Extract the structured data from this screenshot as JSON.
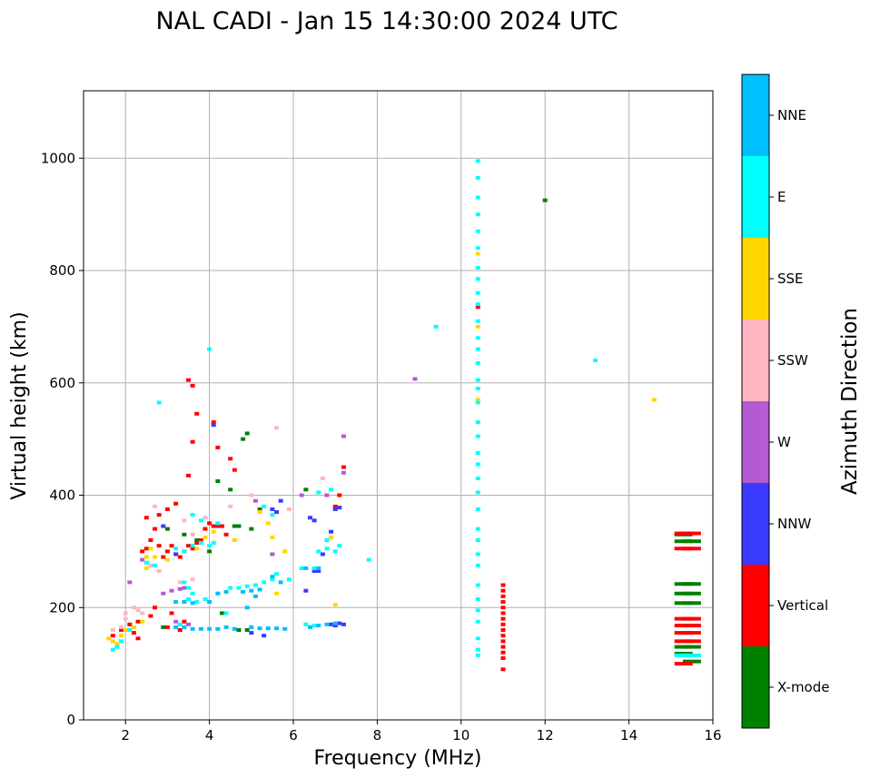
{
  "chart_data": {
    "type": "scatter",
    "title": "NAL CADI - Jan 15 14:30:00 2024 UTC",
    "xlabel": "Frequency (MHz)",
    "ylabel": "Virtual height (km)",
    "xlim": [
      1,
      16
    ],
    "ylim": [
      0,
      1120
    ],
    "xticks": [
      2,
      4,
      6,
      8,
      10,
      12,
      14,
      16
    ],
    "yticks": [
      0,
      200,
      400,
      600,
      800,
      1000
    ],
    "grid": true,
    "colorbar": {
      "label": "Azimuth Direction",
      "categories": [
        {
          "name": "X-mode",
          "color": "#008000"
        },
        {
          "name": "Vertical",
          "color": "#ff0000"
        },
        {
          "name": "NNW",
          "color": "#3a3aff"
        },
        {
          "name": "W",
          "color": "#b45ad2"
        },
        {
          "name": "SSW",
          "color": "#ffb6c1"
        },
        {
          "name": "SSE",
          "color": "#ffd700"
        },
        {
          "name": "E",
          "color": "#00ffff"
        },
        {
          "name": "NNE",
          "color": "#00bfff"
        }
      ]
    },
    "series": [
      {
        "name": "X-mode",
        "points": [
          [
            4.2,
            425
          ],
          [
            4.6,
            345
          ],
          [
            4.7,
            345
          ],
          [
            4.8,
            500
          ],
          [
            4.9,
            510
          ],
          [
            4.5,
            410
          ],
          [
            5.0,
            340
          ],
          [
            5.2,
            375
          ],
          [
            4.7,
            160
          ],
          [
            4.9,
            160
          ],
          [
            15.3,
            330
          ],
          [
            15.3,
            318
          ],
          [
            15.5,
            318
          ],
          [
            15.3,
            242
          ],
          [
            15.5,
            242
          ],
          [
            15.3,
            225
          ],
          [
            15.5,
            225
          ],
          [
            15.3,
            208
          ],
          [
            15.5,
            208
          ],
          [
            15.3,
            130
          ],
          [
            15.5,
            130
          ],
          [
            15.3,
            118
          ],
          [
            15.5,
            104
          ],
          [
            12.0,
            925
          ],
          [
            3.4,
            330
          ],
          [
            3.7,
            320
          ],
          [
            4.0,
            300
          ],
          [
            4.3,
            190
          ],
          [
            6.3,
            410
          ],
          [
            2.9,
            165
          ],
          [
            3.0,
            340
          ]
        ]
      },
      {
        "name": "Vertical",
        "points": [
          [
            1.7,
            150
          ],
          [
            1.9,
            160
          ],
          [
            2.1,
            170
          ],
          [
            2.2,
            155
          ],
          [
            2.3,
            145
          ],
          [
            2.3,
            175
          ],
          [
            2.4,
            300
          ],
          [
            2.5,
            305
          ],
          [
            2.6,
            320
          ],
          [
            2.7,
            340
          ],
          [
            2.8,
            310
          ],
          [
            2.9,
            290
          ],
          [
            3.0,
            300
          ],
          [
            3.1,
            310
          ],
          [
            3.2,
            295
          ],
          [
            3.3,
            290
          ],
          [
            3.4,
            300
          ],
          [
            3.5,
            310
          ],
          [
            3.6,
            305
          ],
          [
            3.7,
            315
          ],
          [
            3.8,
            320
          ],
          [
            3.9,
            340
          ],
          [
            4.0,
            350
          ],
          [
            4.1,
            345
          ],
          [
            4.2,
            345
          ],
          [
            4.3,
            345
          ],
          [
            4.4,
            330
          ],
          [
            3.5,
            435
          ],
          [
            3.6,
            495
          ],
          [
            3.7,
            545
          ],
          [
            3.6,
            595
          ],
          [
            3.5,
            605
          ],
          [
            4.1,
            530
          ],
          [
            4.2,
            485
          ],
          [
            4.5,
            465
          ],
          [
            4.6,
            445
          ],
          [
            2.5,
            360
          ],
          [
            2.8,
            365
          ],
          [
            3.0,
            375
          ],
          [
            3.2,
            385
          ],
          [
            3.0,
            165
          ],
          [
            3.1,
            190
          ],
          [
            3.3,
            160
          ],
          [
            3.4,
            175
          ],
          [
            2.6,
            185
          ],
          [
            2.7,
            200
          ],
          [
            11.0,
            240
          ],
          [
            11.0,
            230
          ],
          [
            11.0,
            220
          ],
          [
            11.0,
            210
          ],
          [
            11.0,
            200
          ],
          [
            11.0,
            190
          ],
          [
            11.0,
            180
          ],
          [
            11.0,
            170
          ],
          [
            11.0,
            160
          ],
          [
            11.0,
            150
          ],
          [
            11.0,
            140
          ],
          [
            11.0,
            130
          ],
          [
            11.0,
            120
          ],
          [
            11.0,
            110
          ],
          [
            11.0,
            90
          ],
          [
            10.4,
            735
          ],
          [
            15.3,
            332
          ],
          [
            15.5,
            332
          ],
          [
            15.3,
            305
          ],
          [
            15.5,
            305
          ],
          [
            15.3,
            180
          ],
          [
            15.5,
            180
          ],
          [
            15.3,
            168
          ],
          [
            15.5,
            168
          ],
          [
            15.3,
            155
          ],
          [
            15.5,
            155
          ],
          [
            15.3,
            140
          ],
          [
            15.5,
            140
          ],
          [
            15.3,
            100
          ],
          [
            7.2,
            450
          ],
          [
            7.0,
            380
          ],
          [
            7.1,
            400
          ]
        ]
      },
      {
        "name": "NNW",
        "points": [
          [
            5.5,
            375
          ],
          [
            5.6,
            370
          ],
          [
            5.7,
            390
          ],
          [
            6.4,
            360
          ],
          [
            6.5,
            355
          ],
          [
            6.7,
            295
          ],
          [
            6.9,
            335
          ],
          [
            7.0,
            375
          ],
          [
            7.1,
            378
          ],
          [
            6.9,
            170
          ],
          [
            7.0,
            168
          ],
          [
            7.1,
            172
          ],
          [
            6.5,
            265
          ],
          [
            6.6,
            265
          ],
          [
            6.3,
            230
          ],
          [
            5.3,
            150
          ],
          [
            5.0,
            155
          ],
          [
            2.9,
            345
          ],
          [
            7.2,
            170
          ],
          [
            4.1,
            525
          ],
          [
            3.2,
            295
          ]
        ]
      },
      {
        "name": "W",
        "points": [
          [
            3.1,
            230
          ],
          [
            3.3,
            233
          ],
          [
            3.4,
            235
          ],
          [
            2.9,
            225
          ],
          [
            8.9,
            607
          ],
          [
            6.2,
            400
          ],
          [
            7.2,
            440
          ],
          [
            7.2,
            505
          ],
          [
            5.1,
            390
          ],
          [
            3.5,
            170
          ],
          [
            3.2,
            175
          ],
          [
            2.4,
            285
          ],
          [
            2.1,
            245
          ],
          [
            5.5,
            295
          ],
          [
            6.8,
            400
          ]
        ]
      },
      {
        "name": "SSW",
        "points": [
          [
            1.7,
            160
          ],
          [
            1.9,
            165
          ],
          [
            2.0,
            180
          ],
          [
            2.2,
            200
          ],
          [
            2.3,
            195
          ],
          [
            2.4,
            190
          ],
          [
            2.6,
            275
          ],
          [
            2.7,
            380
          ],
          [
            3.4,
            355
          ],
          [
            3.6,
            330
          ],
          [
            3.9,
            360
          ],
          [
            4.5,
            380
          ],
          [
            5.0,
            400
          ],
          [
            5.6,
            520
          ],
          [
            6.7,
            430
          ],
          [
            5.9,
            375
          ],
          [
            2.8,
            265
          ],
          [
            2.0,
            190
          ],
          [
            3.3,
            245
          ],
          [
            3.6,
            250
          ]
        ]
      },
      {
        "name": "SSE",
        "points": [
          [
            1.6,
            145
          ],
          [
            1.7,
            140
          ],
          [
            1.8,
            135
          ],
          [
            1.9,
            150
          ],
          [
            2.0,
            160
          ],
          [
            2.2,
            165
          ],
          [
            2.4,
            175
          ],
          [
            2.5,
            290
          ],
          [
            2.6,
            305
          ],
          [
            2.7,
            290
          ],
          [
            3.0,
            285
          ],
          [
            4.6,
            320
          ],
          [
            5.2,
            370
          ],
          [
            5.4,
            350
          ],
          [
            5.5,
            325
          ],
          [
            5.8,
            300
          ],
          [
            7.0,
            205
          ],
          [
            3.7,
            305
          ],
          [
            3.9,
            325
          ],
          [
            4.1,
            335
          ],
          [
            10.4,
            830
          ],
          [
            10.4,
            700
          ],
          [
            10.4,
            570
          ],
          [
            14.6,
            570
          ],
          [
            6.9,
            325
          ],
          [
            2.5,
            270
          ],
          [
            5.6,
            225
          ]
        ]
      },
      {
        "name": "E",
        "points": [
          [
            1.7,
            125
          ],
          [
            1.8,
            130
          ],
          [
            1.9,
            140
          ],
          [
            2.1,
            160
          ],
          [
            2.5,
            280
          ],
          [
            2.7,
            275
          ],
          [
            3.2,
            305
          ],
          [
            3.4,
            300
          ],
          [
            3.6,
            310
          ],
          [
            3.8,
            315
          ],
          [
            4.0,
            310
          ],
          [
            4.1,
            315
          ],
          [
            3.4,
            245
          ],
          [
            3.5,
            235
          ],
          [
            3.6,
            225
          ],
          [
            3.5,
            215
          ],
          [
            3.7,
            210
          ],
          [
            3.9,
            215
          ],
          [
            4.2,
            225
          ],
          [
            4.5,
            235
          ],
          [
            4.7,
            235
          ],
          [
            4.9,
            238
          ],
          [
            5.1,
            240
          ],
          [
            5.3,
            245
          ],
          [
            5.5,
            250
          ],
          [
            5.6,
            260
          ],
          [
            5.9,
            250
          ],
          [
            6.2,
            270
          ],
          [
            6.5,
            270
          ],
          [
            6.6,
            300
          ],
          [
            6.8,
            305
          ],
          [
            7.0,
            300
          ],
          [
            7.1,
            310
          ],
          [
            6.8,
            320
          ],
          [
            6.6,
            405
          ],
          [
            6.9,
            410
          ],
          [
            5.5,
            365
          ],
          [
            5.3,
            380
          ],
          [
            4.0,
            660
          ],
          [
            3.6,
            365
          ],
          [
            3.8,
            355
          ],
          [
            4.2,
            350
          ],
          [
            9.4,
            700
          ],
          [
            13.2,
            640
          ],
          [
            7.8,
            285
          ],
          [
            10.4,
            995
          ],
          [
            10.4,
            965
          ],
          [
            10.4,
            930
          ],
          [
            10.4,
            900
          ],
          [
            10.4,
            870
          ],
          [
            10.4,
            840
          ],
          [
            10.4,
            805
          ],
          [
            10.4,
            785
          ],
          [
            10.4,
            760
          ],
          [
            10.4,
            740
          ],
          [
            10.4,
            710
          ],
          [
            10.4,
            680
          ],
          [
            10.4,
            660
          ],
          [
            10.4,
            635
          ],
          [
            10.4,
            605
          ],
          [
            10.4,
            590
          ],
          [
            10.4,
            565
          ],
          [
            10.4,
            530
          ],
          [
            10.4,
            505
          ],
          [
            10.4,
            475
          ],
          [
            10.4,
            455
          ],
          [
            10.4,
            430
          ],
          [
            10.4,
            405
          ],
          [
            10.4,
            375
          ],
          [
            10.4,
            340
          ],
          [
            10.4,
            320
          ],
          [
            10.4,
            295
          ],
          [
            10.4,
            275
          ],
          [
            10.4,
            240
          ],
          [
            10.4,
            215
          ],
          [
            10.4,
            195
          ],
          [
            10.4,
            175
          ],
          [
            10.4,
            145
          ],
          [
            10.4,
            125
          ],
          [
            10.4,
            115
          ],
          [
            15.3,
            115
          ],
          [
            15.5,
            115
          ],
          [
            6.5,
            168
          ],
          [
            2.8,
            565
          ],
          [
            6.3,
            170
          ],
          [
            3.3,
            170
          ],
          [
            4.4,
            190
          ]
        ]
      },
      {
        "name": "NNE",
        "points": [
          [
            3.2,
            165
          ],
          [
            3.4,
            165
          ],
          [
            3.6,
            162
          ],
          [
            3.8,
            162
          ],
          [
            4.0,
            162
          ],
          [
            4.2,
            162
          ],
          [
            4.4,
            165
          ],
          [
            4.6,
            162
          ],
          [
            5.0,
            165
          ],
          [
            5.2,
            163
          ],
          [
            5.4,
            163
          ],
          [
            5.6,
            163
          ],
          [
            5.8,
            162
          ],
          [
            6.4,
            165
          ],
          [
            6.6,
            168
          ],
          [
            6.8,
            170
          ],
          [
            7.0,
            172
          ],
          [
            3.2,
            210
          ],
          [
            3.4,
            210
          ],
          [
            3.6,
            208
          ],
          [
            4.0,
            210
          ],
          [
            4.2,
            225
          ],
          [
            4.4,
            228
          ],
          [
            4.8,
            228
          ],
          [
            5.0,
            230
          ],
          [
            5.2,
            232
          ],
          [
            4.9,
            200
          ],
          [
            5.1,
            220
          ],
          [
            6.6,
            270
          ],
          [
            6.3,
            270
          ],
          [
            5.5,
            255
          ],
          [
            5.7,
            245
          ]
        ]
      }
    ]
  }
}
